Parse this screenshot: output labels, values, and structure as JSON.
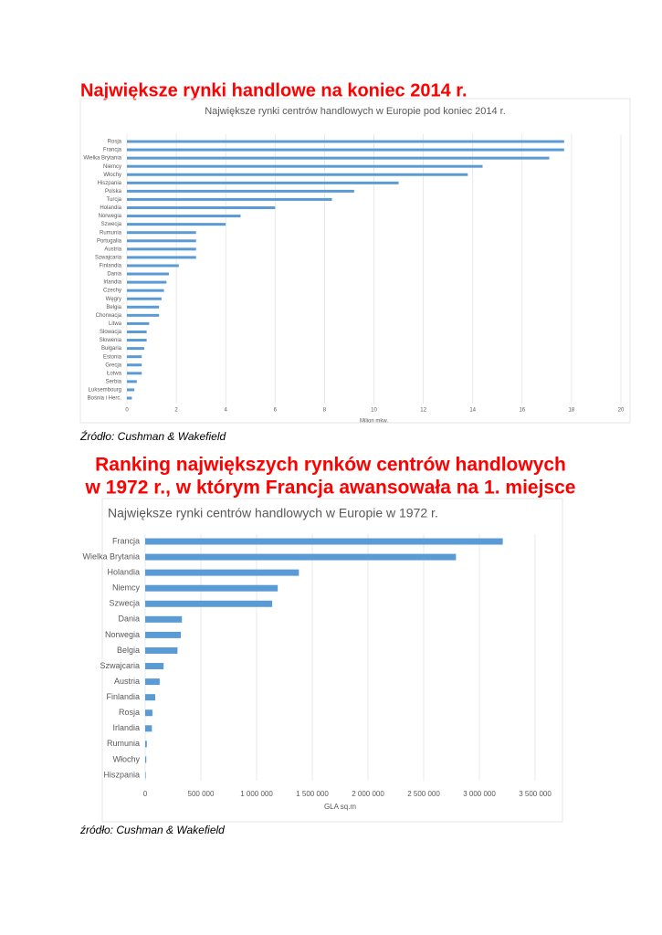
{
  "heading1": "Największe rynki handlowe  na koniec 2014 r.",
  "source1": "Źródło: Cushman & Wakefield",
  "heading2": [
    "Ranking największych rynków centrów handlowych",
    "w 1972 r., w którym Francja awansowała na 1. miejsce"
  ],
  "source2": "źródło: Cushman & Wakefield",
  "chart_data": [
    {
      "type": "hbar",
      "title": "Największe rynki centrów handlowych w Europie pod koniec 2014 r.",
      "x_label": "Milion mkw.",
      "color": "#5b9bd5",
      "grid": true,
      "categories": [
        "Rosja",
        "Francja",
        "Wielka Brytania",
        "Niemcy",
        "Włochy",
        "Hiszpania",
        "Polska",
        "Turcja",
        "Holandia",
        "Norwegia",
        "Szwecja",
        "Rumunia",
        "Portugalia",
        "Austria",
        "Szwajcaria",
        "Finlandia",
        "Dania",
        "Irlandia",
        "Czechy",
        "Węgry",
        "Belgia",
        "Chorwacja",
        "Litwa",
        "Słowacja",
        "Słowenia",
        "Bułgaria",
        "Estonia",
        "Grecja",
        "Łotwa",
        "Serbia",
        "Luksembourg",
        "Bośnia i Herc."
      ],
      "values": [
        17.7,
        17.7,
        17.1,
        14.4,
        13.8,
        11.0,
        9.2,
        8.3,
        6.0,
        4.6,
        4.0,
        2.8,
        2.8,
        2.8,
        2.8,
        2.1,
        1.7,
        1.6,
        1.5,
        1.4,
        1.3,
        1.3,
        0.9,
        0.8,
        0.8,
        0.7,
        0.6,
        0.6,
        0.6,
        0.4,
        0.3,
        0.2
      ],
      "xlim": [
        0,
        20
      ],
      "xticks": [
        0,
        2,
        4,
        6,
        8,
        10,
        12,
        14,
        16,
        18,
        20
      ]
    },
    {
      "type": "hbar",
      "title": "Największe rynki centrów handlowych w Europie w 1972 r.",
      "x_label": "GLA sq.m",
      "color": "#5b9bd5",
      "grid": true,
      "categories": [
        "Francja",
        "Wielka Brytania",
        "Holandia",
        "Niemcy",
        "Szwecja",
        "Dania",
        "Norwegia",
        "Belgia",
        "Szwajcaria",
        "Austria",
        "Finlandia",
        "Rosja",
        "Irlandia",
        "Rumunia",
        "Włochy",
        "Hiszpania"
      ],
      "values": [
        3210000,
        2790000,
        1380000,
        1190000,
        1140000,
        330000,
        320000,
        290000,
        165000,
        130000,
        90000,
        65000,
        60000,
        15000,
        10000,
        5000
      ],
      "xlim": [
        0,
        3500000
      ],
      "xticks": [
        0,
        {
          "value": 500000,
          "label": "500 000"
        },
        {
          "value": 1000000,
          "label": "1 000 000"
        },
        {
          "value": 1500000,
          "label": "1 500 000"
        },
        {
          "value": 2000000,
          "label": "2 000 000"
        },
        {
          "value": 2500000,
          "label": "2 500 000"
        },
        {
          "value": 3000000,
          "label": "3 000 000"
        },
        {
          "value": 3500000,
          "label": "3 500 000"
        }
      ]
    }
  ]
}
